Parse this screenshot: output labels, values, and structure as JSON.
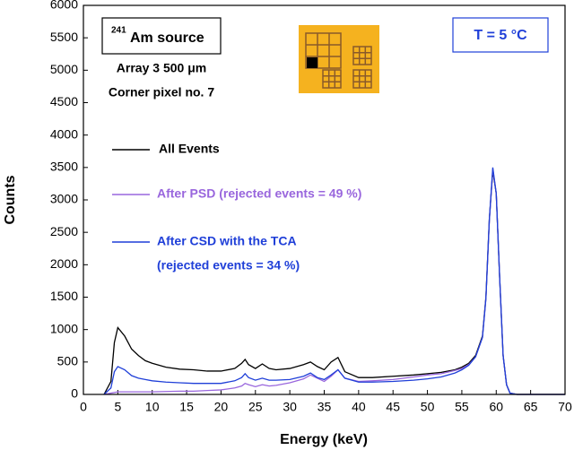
{
  "chart_data": {
    "type": "line",
    "x_label": "Energy (keV)",
    "y_label": "Counts",
    "xlim": [
      0,
      70
    ],
    "xticks": [
      0,
      5,
      10,
      15,
      20,
      25,
      30,
      35,
      40,
      45,
      50,
      55,
      60,
      65,
      70
    ],
    "ylim": [
      0,
      6000
    ],
    "yticks": [
      0,
      500,
      1000,
      1500,
      2000,
      2500,
      3000,
      3500,
      4000,
      4500,
      5000,
      5500,
      6000
    ],
    "grid": false,
    "annotations": {
      "isotope_mass": "241",
      "source": "Am source",
      "array": "Array 3 500 μm",
      "pixel": "Corner pixel no. 7",
      "temperature": "T = 5 °C",
      "csd_rejected": "(rejected events = 34 %)"
    },
    "x": [
      3,
      4,
      4.5,
      5,
      6,
      7,
      8,
      9,
      10,
      12,
      14,
      16,
      18,
      20,
      22,
      23,
      23.5,
      24,
      25,
      26,
      27,
      28,
      30,
      32,
      33,
      34,
      35,
      36,
      37,
      38,
      40,
      42,
      45,
      48,
      50,
      52,
      54,
      55,
      56,
      57,
      58,
      58.5,
      59,
      59.5,
      60,
      60.5,
      61,
      61.5,
      62,
      63,
      65,
      70
    ],
    "series": [
      {
        "name": "All Events",
        "color": "#000000",
        "values": [
          0,
          200,
          800,
          1030,
          900,
          700,
          600,
          520,
          480,
          420,
          390,
          380,
          360,
          360,
          400,
          480,
          540,
          460,
          400,
          470,
          400,
          380,
          400,
          460,
          500,
          430,
          380,
          500,
          570,
          350,
          260,
          260,
          280,
          300,
          320,
          340,
          380,
          420,
          480,
          600,
          900,
          1500,
          2700,
          3450,
          3100,
          1800,
          600,
          150,
          20,
          0,
          0,
          0
        ]
      },
      {
        "name": "After PSD (rejected events = 49 %)",
        "color": "#9966dd",
        "values": [
          0,
          20,
          30,
          40,
          40,
          40,
          40,
          40,
          40,
          45,
          50,
          50,
          60,
          70,
          100,
          130,
          170,
          150,
          120,
          150,
          130,
          140,
          180,
          240,
          300,
          250,
          200,
          280,
          380,
          250,
          200,
          210,
          230,
          270,
          300,
          320,
          370,
          400,
          460,
          580,
          880,
          1480,
          2680,
          3480,
          3100,
          1800,
          600,
          150,
          20,
          0,
          0,
          0
        ]
      },
      {
        "name": "After CSD with the TCA",
        "color": "#1f3fd8",
        "values": [
          0,
          100,
          350,
          430,
          380,
          290,
          250,
          230,
          210,
          190,
          180,
          170,
          170,
          170,
          210,
          260,
          320,
          260,
          220,
          250,
          220,
          220,
          230,
          280,
          330,
          260,
          230,
          300,
          380,
          250,
          190,
          190,
          200,
          220,
          240,
          270,
          330,
          380,
          450,
          580,
          880,
          1480,
          2700,
          3500,
          3100,
          1800,
          600,
          150,
          20,
          0,
          0,
          0
        ]
      }
    ]
  }
}
